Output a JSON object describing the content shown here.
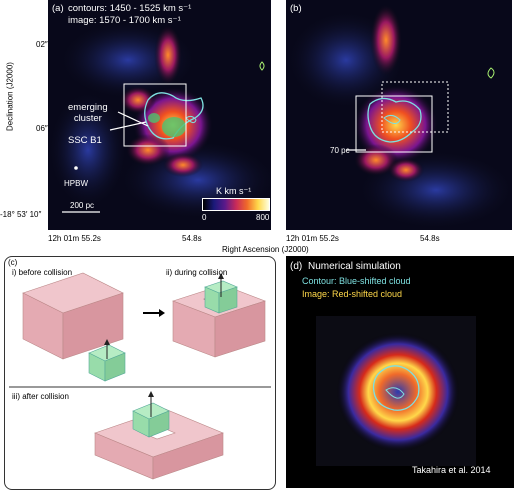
{
  "panel_a": {
    "tag": "(a)",
    "line1": "contours: 1450 - 1525 km s⁻¹",
    "line2": "image: 1570 - 1700 km s⁻¹",
    "label_cluster": "emerging\ncluster",
    "label_ssc": "SSC B1",
    "label_hpbw": "HPBW",
    "scale_bar": "200 pc",
    "colorbar_title": "K km s⁻¹",
    "colorbar_min": "0",
    "colorbar_max": "800"
  },
  "panel_b": {
    "tag": "(b)",
    "label_70pc": "70 pc"
  },
  "axes": {
    "ylabel": "Declination (J2000)",
    "xlabel": "Right Ascension (J2000)",
    "ytick_1": "02″",
    "ytick_2": "06″",
    "ytick_3": "-18° 53′ 10″",
    "xtick_1": "12h 01m 55.2s",
    "xtick_2": "54.8s",
    "xtick_b1": "12h 01m 55.2s",
    "xtick_b2": "54.8s"
  },
  "panel_c": {
    "tag": "(c)",
    "step1": "i) before collision",
    "step2": "ii) during collision",
    "step3": "iii) after collision"
  },
  "panel_d": {
    "tag": "(d)",
    "title": "Numerical simulation",
    "contour": "Contour: Blue-shifted cloud",
    "image": "Image: Red-shifted cloud",
    "credit": "Takahira et al. 2014"
  },
  "colors": {
    "contour_cyan": "#7ee0e0",
    "image_red": "#d62a1a",
    "cloud_pink": "#e9b8c0",
    "cloud_green": "#8ed8a0"
  }
}
